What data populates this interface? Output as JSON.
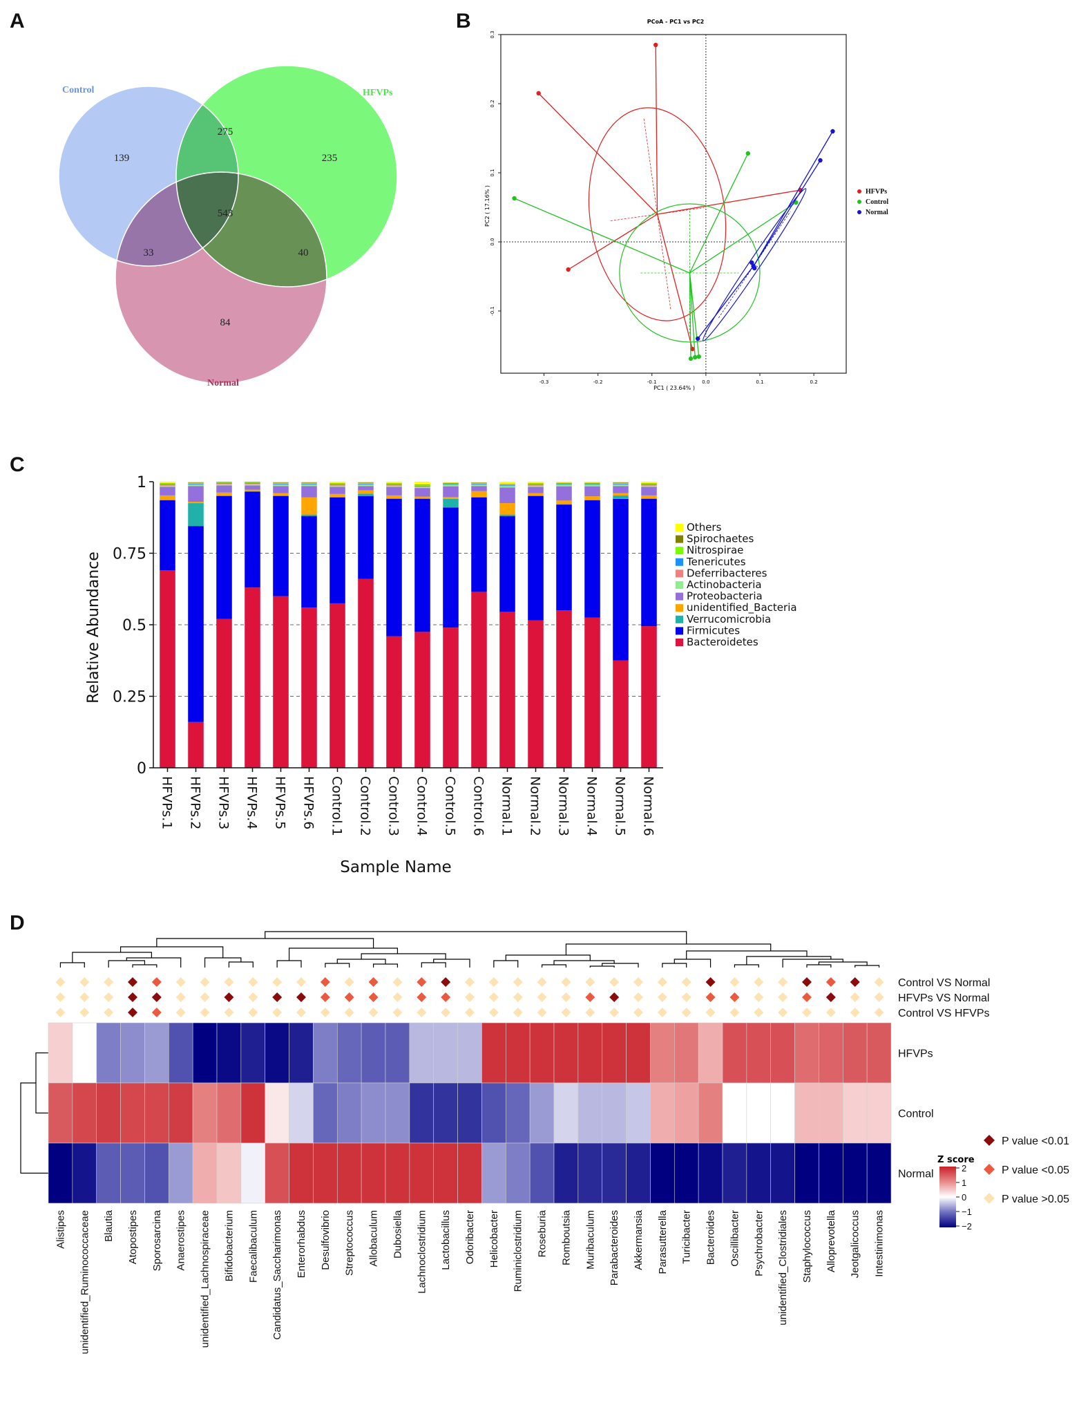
{
  "panels": {
    "A": "A",
    "B": "B",
    "C": "C",
    "D": "D"
  },
  "colors": {
    "control": "#1fc21f",
    "hfvps": "#e02020",
    "normal": "#1515d4",
    "venn_control": "#8aaef0",
    "venn_hfvps": "#6cf56c",
    "venn_normal": "#c7688c"
  },
  "chart_data": [
    {
      "type": "venn",
      "sets": [
        {
          "name": "Control",
          "color": "#6a93e0"
        },
        {
          "name": "HFVPs",
          "color": "#4ce34c"
        },
        {
          "name": "Normal",
          "color": "#a8335c"
        }
      ],
      "regions": {
        "control_only": 139,
        "hfvps_only": 235,
        "normal_only": 84,
        "control_hfvps": 275,
        "control_normal": 33,
        "hfvps_normal": 40,
        "all_three": 543
      }
    },
    {
      "type": "scatter",
      "title": "PCoA - PC1 vs PC2",
      "xlabel": "PC1 ( 23.64% )",
      "ylabel": "PC2 ( 17.16% )",
      "xlim": [
        -0.38,
        0.26
      ],
      "ylim": [
        -0.19,
        0.3
      ],
      "xticks": [
        -0.3,
        -0.2,
        -0.1,
        0.0,
        0.1,
        0.2
      ],
      "xtick_labels": [
        "-0.3",
        "-0.2",
        "-0.1",
        "0.0",
        "0.1",
        "0.2"
      ],
      "yticks": [
        -0.1,
        0.0,
        0.1,
        0.2,
        0.3
      ],
      "ytick_labels": [
        "-0.1",
        "0.0",
        "0.1",
        "0.2",
        "0.3"
      ],
      "legend": [
        "HFVPs",
        "Control",
        "Normal"
      ],
      "series": [
        {
          "name": "HFVPs",
          "color": "#e02020",
          "centroid": [
            -0.09,
            0.04
          ],
          "ellipse": {
            "rx": 0.125,
            "ry": 0.155,
            "angle": -8
          },
          "points": [
            [
              -0.093,
              0.285
            ],
            [
              -0.31,
              0.215
            ],
            [
              -0.255,
              -0.04
            ],
            [
              -0.025,
              -0.155
            ],
            [
              0.175,
              0.075
            ]
          ]
        },
        {
          "name": "Control",
          "color": "#1fc21f",
          "centroid": [
            -0.03,
            -0.045
          ],
          "ellipse": {
            "rx": 0.13,
            "ry": 0.1,
            "angle": 0
          },
          "points": [
            [
              -0.355,
              0.063
            ],
            [
              0.078,
              0.128
            ],
            [
              0.167,
              0.057
            ],
            [
              -0.028,
              -0.169
            ],
            [
              -0.02,
              -0.167
            ],
            [
              -0.013,
              -0.166
            ]
          ]
        },
        {
          "name": "Normal",
          "color": "#1515d4",
          "centroid": [
            0.09,
            -0.033
          ],
          "ellipse": {
            "rx": 0.17,
            "ry": 0.008,
            "angle": -56
          },
          "points": [
            [
              0.235,
              0.16
            ],
            [
              0.212,
              0.118
            ],
            [
              -0.015,
              -0.14
            ],
            [
              0.085,
              -0.03
            ],
            [
              0.088,
              -0.035
            ],
            [
              0.09,
              -0.038
            ]
          ]
        }
      ]
    },
    {
      "type": "bar",
      "stacked": true,
      "ylabel": "Relative Abundance",
      "xlabel": "Sample Name",
      "ylim": [
        0,
        1
      ],
      "yticks": [
        0,
        0.25,
        0.5,
        0.75,
        1
      ],
      "ytick_labels": [
        "0",
        "0.25",
        "0.5",
        "0.75",
        "1"
      ],
      "categories": [
        "HFVPs.1",
        "HFVPs.2",
        "HFVPs.3",
        "HFVPs.4",
        "HFVPs.5",
        "HFVPs.6",
        "Control.1",
        "Control.2",
        "Control.3",
        "Control.4",
        "Control.5",
        "Control.6",
        "Normal.1",
        "Normal.2",
        "Normal.3",
        "Normal.4",
        "Normal.5",
        "Normal.6"
      ],
      "series": [
        {
          "name": "Bacteroidetes",
          "color": "#dc143c",
          "values": [
            0.69,
            0.16,
            0.52,
            0.63,
            0.6,
            0.56,
            0.575,
            0.66,
            0.46,
            0.475,
            0.49,
            0.615,
            0.545,
            0.515,
            0.55,
            0.525,
            0.375,
            0.495
          ]
        },
        {
          "name": "Firmicutes",
          "color": "#0000ee",
          "values": [
            0.245,
            0.685,
            0.43,
            0.335,
            0.35,
            0.32,
            0.37,
            0.29,
            0.48,
            0.465,
            0.42,
            0.33,
            0.335,
            0.435,
            0.37,
            0.41,
            0.565,
            0.445
          ]
        },
        {
          "name": "Verrucomicrobia",
          "color": "#20b2aa",
          "values": [
            0.002,
            0.08,
            0.002,
            0.002,
            0.002,
            0.005,
            0.002,
            0.008,
            0.002,
            0.002,
            0.03,
            0.002,
            0.005,
            0.002,
            0.002,
            0.002,
            0.012,
            0.002
          ]
        },
        {
          "name": "unidentified_Bacteria",
          "color": "#ffa500",
          "values": [
            0.015,
            0.005,
            0.01,
            0.005,
            0.008,
            0.06,
            0.01,
            0.012,
            0.01,
            0.006,
            0.006,
            0.02,
            0.04,
            0.008,
            0.012,
            0.012,
            0.008,
            0.01
          ]
        },
        {
          "name": "Proteobacteria",
          "color": "#9370db",
          "values": [
            0.03,
            0.055,
            0.025,
            0.015,
            0.025,
            0.04,
            0.025,
            0.015,
            0.03,
            0.03,
            0.038,
            0.018,
            0.055,
            0.022,
            0.05,
            0.035,
            0.025,
            0.03
          ]
        },
        {
          "name": "Actinobacteria",
          "color": "#90ee90",
          "values": [
            0.004,
            0.004,
            0.004,
            0.004,
            0.004,
            0.004,
            0.004,
            0.004,
            0.004,
            0.004,
            0.004,
            0.004,
            0.004,
            0.004,
            0.004,
            0.004,
            0.004,
            0.004
          ]
        },
        {
          "name": "Deferribacteres",
          "color": "#f08080",
          "values": [
            0.002,
            0.002,
            0.002,
            0.002,
            0.002,
            0.002,
            0.002,
            0.002,
            0.002,
            0.002,
            0.002,
            0.002,
            0.002,
            0.002,
            0.002,
            0.002,
            0.002,
            0.002
          ]
        },
        {
          "name": "Tenericutes",
          "color": "#1e90ff",
          "values": [
            0.002,
            0.002,
            0.002,
            0.002,
            0.002,
            0.002,
            0.002,
            0.002,
            0.002,
            0.002,
            0.002,
            0.002,
            0.002,
            0.002,
            0.002,
            0.002,
            0.002,
            0.002
          ]
        },
        {
          "name": "Nitrospirae",
          "color": "#7cfc00",
          "values": [
            0.002,
            0.002,
            0.002,
            0.002,
            0.002,
            0.002,
            0.002,
            0.002,
            0.002,
            0.002,
            0.002,
            0.002,
            0.002,
            0.002,
            0.002,
            0.002,
            0.002,
            0.002
          ]
        },
        {
          "name": "Spirochaetes",
          "color": "#808000",
          "values": [
            0.002,
            0.002,
            0.002,
            0.002,
            0.002,
            0.002,
            0.002,
            0.002,
            0.002,
            0.002,
            0.002,
            0.002,
            0.002,
            0.002,
            0.002,
            0.002,
            0.002,
            0.002
          ]
        },
        {
          "name": "Others",
          "color": "#ffff00",
          "values": [
            0.006,
            0.003,
            0.001,
            0.001,
            0.003,
            0.003,
            0.006,
            0.003,
            0.008,
            0.01,
            0.002,
            0.001,
            0.008,
            0.006,
            0.004,
            0.004,
            0.003,
            0.006
          ]
        }
      ],
      "legend": [
        "Others",
        "Spirochaetes",
        "Nitrospirae",
        "Tenericutes",
        "Deferribacteres",
        "Actinobacteria",
        "Proteobacteria",
        "unidentified_Bacteria",
        "Verrucomicrobia",
        "Firmicutes",
        "Bacteroidetes"
      ]
    },
    {
      "type": "heatmap",
      "rows": [
        "HFVPs",
        "Control",
        "Normal"
      ],
      "columns": [
        "Alistipes",
        "unidentified_Ruminococcaceae",
        "Blautia",
        "Atopostipes",
        "Sporosarcina",
        "Anaerostipes",
        "unidentified_Lachnospiraceae",
        "Bifidobacterium",
        "Faecalibaculum",
        "Candidatus_Saccharimonas",
        "Enterorhabdus",
        "Desulfovibrio",
        "Streptococcus",
        "Allobaculum",
        "Dubosiella",
        "Lachnoclostridium",
        "Lactobacillus",
        "Odoribacter",
        "Helicobacter",
        "Ruminiclostridium",
        "Roseburia",
        "Romboutsia",
        "Muribaculum",
        "Parabacteroides",
        "Akkermansia",
        "Parasutterella",
        "Turicibacter",
        "Bacteroides",
        "Oscillibacter",
        "Psychrobacter",
        "unidentified_Clostridiales",
        "Staphylococcus",
        "Alloprevotella",
        "Jeotgalicoccus",
        "Intestinimonas"
      ],
      "values": [
        [
          0.4,
          0.0,
          -0.9,
          -0.8,
          -0.7,
          -1.3,
          -2.1,
          -2.0,
          -1.8,
          -2.0,
          -1.8,
          -0.9,
          -1.1,
          -1.2,
          -1.2,
          -0.5,
          -0.5,
          -0.5,
          1.9,
          1.9,
          1.9,
          1.9,
          1.9,
          1.9,
          1.9,
          1.1,
          1.2,
          0.7,
          1.6,
          1.6,
          1.6,
          1.3,
          1.4,
          1.5,
          1.5
        ],
        [
          1.5,
          1.7,
          1.8,
          1.7,
          1.7,
          1.8,
          1.1,
          1.3,
          1.9,
          0.2,
          -0.3,
          -1.1,
          -0.9,
          -0.8,
          -0.8,
          -1.6,
          -1.6,
          -1.6,
          -1.3,
          -1.1,
          -0.7,
          -0.3,
          -0.5,
          -0.5,
          -0.4,
          0.7,
          0.8,
          1.1,
          0.0,
          0.0,
          0.0,
          0.6,
          0.6,
          0.4,
          0.4
        ],
        [
          -2.1,
          -1.9,
          -1.2,
          -1.2,
          -1.3,
          -0.7,
          0.7,
          0.5,
          -0.1,
          1.6,
          1.9,
          1.9,
          1.9,
          1.9,
          1.9,
          1.9,
          1.9,
          1.9,
          -0.7,
          -0.9,
          -1.3,
          -1.8,
          -1.7,
          -1.7,
          -1.8,
          -2.1,
          -2.1,
          -2.0,
          -1.8,
          -1.9,
          -1.9,
          -2.1,
          -2.1,
          -2.1,
          -2.1
        ]
      ],
      "comparisons": [
        "Control VS Normal",
        "HFVPs VS Normal",
        "Control VS HFVPs"
      ],
      "significance": [
        [
          0,
          0,
          0,
          2,
          1,
          0,
          0,
          0,
          0,
          0,
          0,
          1,
          0,
          1,
          0,
          1,
          2,
          0,
          0,
          0,
          0,
          0,
          0,
          0,
          0,
          0,
          0,
          2,
          0,
          0,
          0,
          2,
          1,
          2,
          0
        ],
        [
          0,
          0,
          0,
          2,
          2,
          0,
          0,
          2,
          0,
          2,
          2,
          1,
          1,
          1,
          0,
          1,
          1,
          0,
          0,
          0,
          0,
          0,
          1,
          2,
          0,
          0,
          0,
          1,
          1,
          0,
          0,
          1,
          2,
          0,
          0
        ],
        [
          0,
          0,
          0,
          2,
          1,
          0,
          0,
          0,
          0,
          0,
          0,
          0,
          0,
          0,
          0,
          0,
          0,
          0,
          0,
          0,
          0,
          0,
          0,
          0,
          0,
          0,
          0,
          0,
          0,
          0,
          0,
          0,
          0,
          0,
          0
        ]
      ],
      "significance_colors": [
        "#fde3b3",
        "#ea5a3e",
        "#8b0a0a"
      ],
      "colorbar": {
        "title": "Z score",
        "ticks": [
          2,
          1,
          0,
          -1,
          -2
        ],
        "tick_labels": [
          "2",
          "1",
          "0",
          "−1",
          "−2"
        ],
        "range": [
          -2.1,
          2.1
        ]
      },
      "pvalue_legend": [
        "P value <0.01",
        "P value <0.05",
        "P value >0.05"
      ]
    }
  ]
}
